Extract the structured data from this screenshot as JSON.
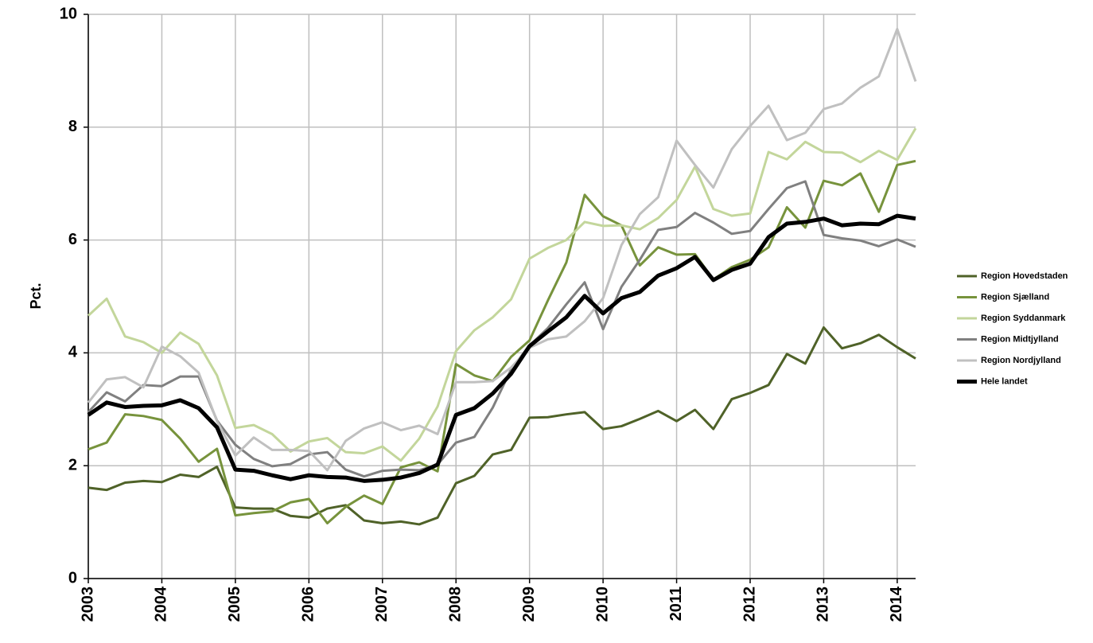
{
  "chart_data": {
    "type": "line",
    "y_label": "Pct.",
    "grid": true,
    "legend": "right",
    "x": [
      2003,
      2003.25,
      2003.5,
      2003.75,
      2004,
      2004.25,
      2004.5,
      2004.75,
      2005,
      2005.25,
      2005.5,
      2005.75,
      2006,
      2006.25,
      2006.5,
      2006.75,
      2007,
      2007.25,
      2007.5,
      2007.75,
      2008,
      2008.25,
      2008.5,
      2008.75,
      2009,
      2009.25,
      2009.5,
      2009.75,
      2010,
      2010.25,
      2010.5,
      2010.75,
      2011,
      2011.25,
      2011.5,
      2011.75,
      2012,
      2012.25,
      2012.5,
      2012.75,
      2013,
      2013.25,
      2013.5,
      2013.75,
      2014,
      2014.25
    ],
    "xlim": [
      2003,
      2014.25
    ],
    "xticks": [
      2003,
      2004,
      2005,
      2006,
      2007,
      2008,
      2009,
      2010,
      2011,
      2012,
      2013,
      2014
    ],
    "ylim": [
      0,
      10
    ],
    "yticks": [
      0,
      2,
      4,
      6,
      8,
      10
    ],
    "series": [
      {
        "name": "Region Hovedstaden",
        "color": "#4f6228",
        "width": 3,
        "values": [
          1.61,
          1.57,
          1.7,
          1.73,
          1.71,
          1.84,
          1.8,
          1.98,
          1.26,
          1.24,
          1.24,
          1.11,
          1.08,
          1.24,
          1.3,
          1.03,
          0.98,
          1.01,
          0.96,
          1.08,
          1.69,
          1.82,
          2.2,
          2.28,
          2.85,
          2.86,
          2.91,
          2.95,
          2.65,
          2.7,
          2.83,
          2.97,
          2.79,
          2.99,
          2.65,
          3.18,
          3.29,
          3.43,
          3.98,
          3.81,
          4.45,
          4.08,
          4.17,
          4.32,
          4.1,
          3.9
        ]
      },
      {
        "name": "Region Sjælland",
        "color": "#77933c",
        "width": 3,
        "values": [
          2.29,
          2.41,
          2.91,
          2.88,
          2.81,
          2.48,
          2.07,
          2.3,
          1.12,
          1.16,
          1.19,
          1.35,
          1.41,
          0.98,
          1.27,
          1.47,
          1.32,
          1.97,
          2.06,
          1.9,
          3.8,
          3.6,
          3.5,
          3.93,
          4.22,
          4.93,
          5.6,
          6.8,
          6.42,
          6.26,
          5.55,
          5.87,
          5.74,
          5.75,
          5.3,
          5.52,
          5.65,
          5.87,
          6.58,
          6.22,
          7.05,
          6.97,
          7.18,
          6.5,
          7.33,
          7.4
        ]
      },
      {
        "name": "Region Syddanmark",
        "color": "#c3d69b",
        "width": 3,
        "values": [
          4.66,
          4.96,
          4.29,
          4.19,
          4.0,
          4.36,
          4.16,
          3.6,
          2.67,
          2.72,
          2.56,
          2.25,
          2.43,
          2.49,
          2.24,
          2.22,
          2.34,
          2.09,
          2.48,
          3.05,
          4.03,
          4.4,
          4.63,
          4.95,
          5.67,
          5.86,
          6.0,
          6.32,
          6.25,
          6.26,
          6.19,
          6.39,
          6.71,
          7.3,
          6.55,
          6.43,
          6.47,
          7.56,
          7.43,
          7.74,
          7.56,
          7.55,
          7.38,
          7.58,
          7.42,
          7.98
        ]
      },
      {
        "name": "Region Midtjylland",
        "color": "#808080",
        "width": 3,
        "values": [
          2.95,
          3.3,
          3.14,
          3.43,
          3.41,
          3.58,
          3.58,
          2.8,
          2.37,
          2.12,
          1.99,
          2.03,
          2.2,
          2.24,
          1.93,
          1.81,
          1.91,
          1.93,
          1.92,
          2.02,
          2.41,
          2.51,
          3.03,
          3.71,
          4.13,
          4.44,
          4.86,
          5.25,
          4.42,
          5.17,
          5.65,
          6.18,
          6.23,
          6.48,
          6.31,
          6.11,
          6.16,
          6.55,
          6.92,
          7.04,
          6.09,
          6.03,
          5.99,
          5.89,
          6.01,
          5.88
        ]
      },
      {
        "name": "Region Nordjylland",
        "color": "#c0c0c0",
        "width": 3,
        "values": [
          3.12,
          3.53,
          3.57,
          3.39,
          4.11,
          3.94,
          3.65,
          2.79,
          2.18,
          2.5,
          2.28,
          2.28,
          2.26,
          1.92,
          2.44,
          2.66,
          2.77,
          2.63,
          2.71,
          2.56,
          3.48,
          3.48,
          3.5,
          3.74,
          4.09,
          4.24,
          4.29,
          4.56,
          4.97,
          5.91,
          6.46,
          6.76,
          7.76,
          7.33,
          6.93,
          7.61,
          8.02,
          8.38,
          7.77,
          7.9,
          8.32,
          8.42,
          8.7,
          8.9,
          9.74,
          8.81
        ]
      },
      {
        "name": "Hele landet",
        "color": "#000000",
        "width": 5,
        "values": [
          2.9,
          3.12,
          3.04,
          3.06,
          3.07,
          3.16,
          3.02,
          2.68,
          1.93,
          1.91,
          1.83,
          1.76,
          1.83,
          1.8,
          1.79,
          1.73,
          1.75,
          1.79,
          1.87,
          2.02,
          2.9,
          3.02,
          3.28,
          3.63,
          4.12,
          4.38,
          4.63,
          5.01,
          4.7,
          4.97,
          5.08,
          5.37,
          5.5,
          5.7,
          5.29,
          5.47,
          5.58,
          6.05,
          6.29,
          6.32,
          6.38,
          6.26,
          6.29,
          6.28,
          6.43,
          6.38
        ]
      }
    ]
  }
}
